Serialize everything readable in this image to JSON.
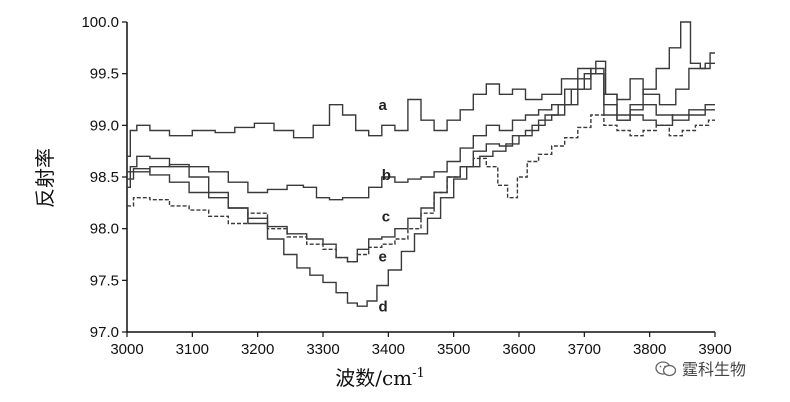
{
  "chart_data": {
    "type": "line",
    "title": "",
    "xlabel": "波数/cm",
    "xlabel_sup": "-1",
    "ylabel": "反射率",
    "xlim": [
      3000,
      3900
    ],
    "ylim": [
      97.0,
      100.0
    ],
    "xticks": [
      3000,
      3100,
      3200,
      3300,
      3400,
      3500,
      3600,
      3700,
      3800,
      3900
    ],
    "yticks": [
      "97.0",
      "97.5",
      "98.0",
      "98.5",
      "99.0",
      "99.5",
      "100.0"
    ],
    "grid": false,
    "legend": "none",
    "series": [
      {
        "name": "a",
        "label_at": [
          3385,
          99.15
        ],
        "points": [
          [
            3000,
            98.7
          ],
          [
            3010,
            98.95
          ],
          [
            3020,
            99.0
          ],
          [
            3050,
            98.95
          ],
          [
            3080,
            98.9
          ],
          [
            3120,
            98.95
          ],
          [
            3150,
            98.93
          ],
          [
            3180,
            98.98
          ],
          [
            3210,
            99.02
          ],
          [
            3240,
            98.95
          ],
          [
            3270,
            98.88
          ],
          [
            3300,
            99.0
          ],
          [
            3320,
            99.2
          ],
          [
            3340,
            99.1
          ],
          [
            3360,
            98.95
          ],
          [
            3380,
            98.9
          ],
          [
            3400,
            99.0
          ],
          [
            3420,
            98.95
          ],
          [
            3440,
            99.25
          ],
          [
            3460,
            99.05
          ],
          [
            3480,
            98.95
          ],
          [
            3500,
            99.05
          ],
          [
            3520,
            99.15
          ],
          [
            3540,
            99.3
          ],
          [
            3560,
            99.4
          ],
          [
            3580,
            99.3
          ],
          [
            3600,
            99.35
          ],
          [
            3620,
            99.25
          ],
          [
            3650,
            99.3
          ],
          [
            3680,
            99.45
          ],
          [
            3700,
            99.55
          ],
          [
            3720,
            99.5
          ],
          [
            3740,
            99.3
          ],
          [
            3760,
            99.25
          ],
          [
            3780,
            99.45
          ],
          [
            3800,
            99.3
          ],
          [
            3830,
            99.2
          ],
          [
            3850,
            99.35
          ],
          [
            3870,
            99.55
          ],
          [
            3900,
            99.6
          ]
        ]
      },
      {
        "name": "b",
        "label_at": [
          3390,
          98.47
        ],
        "points": [
          [
            3000,
            98.48
          ],
          [
            3020,
            98.55
          ],
          [
            3050,
            98.6
          ],
          [
            3080,
            98.62
          ],
          [
            3110,
            98.6
          ],
          [
            3140,
            98.55
          ],
          [
            3170,
            98.45
          ],
          [
            3200,
            98.35
          ],
          [
            3230,
            98.38
          ],
          [
            3260,
            98.42
          ],
          [
            3280,
            98.4
          ],
          [
            3300,
            98.3
          ],
          [
            3320,
            98.28
          ],
          [
            3340,
            98.3
          ],
          [
            3360,
            98.3
          ],
          [
            3380,
            98.4
          ],
          [
            3400,
            98.5
          ],
          [
            3420,
            98.45
          ],
          [
            3440,
            98.48
          ],
          [
            3460,
            98.5
          ],
          [
            3480,
            98.55
          ],
          [
            3500,
            98.65
          ],
          [
            3520,
            98.78
          ],
          [
            3540,
            98.9
          ],
          [
            3560,
            99.0
          ],
          [
            3580,
            98.95
          ],
          [
            3600,
            99.05
          ],
          [
            3620,
            99.1
          ],
          [
            3640,
            99.15
          ],
          [
            3660,
            99.2
          ],
          [
            3680,
            99.35
          ],
          [
            3700,
            99.45
          ],
          [
            3720,
            99.55
          ],
          [
            3740,
            99.1
          ],
          [
            3760,
            99.05
          ],
          [
            3780,
            99.15
          ],
          [
            3800,
            99.2
          ],
          [
            3820,
            99.1
          ],
          [
            3850,
            99.05
          ],
          [
            3870,
            99.1
          ],
          [
            3900,
            99.15
          ]
        ]
      },
      {
        "name": "c",
        "label_at": [
          3390,
          98.07
        ],
        "points": [
          [
            3000,
            98.55
          ],
          [
            3020,
            98.58
          ],
          [
            3050,
            98.52
          ],
          [
            3080,
            98.45
          ],
          [
            3110,
            98.35
          ],
          [
            3140,
            98.3
          ],
          [
            3170,
            98.2
          ],
          [
            3200,
            98.1
          ],
          [
            3230,
            98.02
          ],
          [
            3260,
            97.95
          ],
          [
            3290,
            97.9
          ],
          [
            3310,
            97.85
          ],
          [
            3330,
            97.72
          ],
          [
            3345,
            97.68
          ],
          [
            3360,
            97.8
          ],
          [
            3380,
            97.9
          ],
          [
            3400,
            97.92
          ],
          [
            3420,
            98.0
          ],
          [
            3440,
            98.1
          ],
          [
            3460,
            98.2
          ],
          [
            3480,
            98.35
          ],
          [
            3500,
            98.5
          ],
          [
            3520,
            98.6
          ],
          [
            3540,
            98.75
          ],
          [
            3560,
            98.82
          ],
          [
            3580,
            98.8
          ],
          [
            3600,
            98.9
          ],
          [
            3620,
            98.95
          ],
          [
            3640,
            99.05
          ],
          [
            3660,
            99.1
          ],
          [
            3680,
            99.2
          ],
          [
            3700,
            99.35
          ],
          [
            3720,
            99.5
          ],
          [
            3740,
            99.2
          ],
          [
            3760,
            99.05
          ],
          [
            3780,
            99.1
          ],
          [
            3800,
            99.05
          ],
          [
            3820,
            99.0
          ],
          [
            3850,
            99.1
          ],
          [
            3870,
            99.15
          ],
          [
            3900,
            99.2
          ]
        ]
      },
      {
        "name": "d",
        "label_at": [
          3385,
          97.2
        ],
        "points": [
          [
            3000,
            98.4
          ],
          [
            3010,
            98.6
          ],
          [
            3020,
            98.7
          ],
          [
            3050,
            98.68
          ],
          [
            3080,
            98.6
          ],
          [
            3110,
            98.5
          ],
          [
            3140,
            98.35
          ],
          [
            3170,
            98.2
          ],
          [
            3200,
            98.05
          ],
          [
            3230,
            97.9
          ],
          [
            3250,
            97.75
          ],
          [
            3270,
            97.62
          ],
          [
            3290,
            97.55
          ],
          [
            3310,
            97.48
          ],
          [
            3330,
            97.38
          ],
          [
            3345,
            97.28
          ],
          [
            3360,
            97.25
          ],
          [
            3375,
            97.3
          ],
          [
            3390,
            97.45
          ],
          [
            3410,
            97.6
          ],
          [
            3430,
            97.78
          ],
          [
            3450,
            97.95
          ],
          [
            3470,
            98.1
          ],
          [
            3490,
            98.3
          ],
          [
            3510,
            98.48
          ],
          [
            3530,
            98.6
          ],
          [
            3550,
            98.7
          ],
          [
            3570,
            98.75
          ],
          [
            3590,
            98.82
          ],
          [
            3610,
            98.9
          ],
          [
            3630,
            99.0
          ],
          [
            3650,
            99.1
          ],
          [
            3670,
            99.2
          ],
          [
            3690,
            99.35
          ],
          [
            3710,
            99.5
          ],
          [
            3725,
            99.62
          ],
          [
            3740,
            99.3
          ],
          [
            3760,
            99.1
          ],
          [
            3780,
            99.2
          ],
          [
            3800,
            99.35
          ],
          [
            3820,
            99.55
          ],
          [
            3840,
            99.75
          ],
          [
            3855,
            100.0
          ],
          [
            3870,
            99.6
          ],
          [
            3885,
            99.55
          ],
          [
            3900,
            99.7
          ]
        ]
      },
      {
        "name": "e",
        "label_at": [
          3385,
          97.68
        ],
        "points": [
          [
            3000,
            98.22
          ],
          [
            3020,
            98.3
          ],
          [
            3050,
            98.28
          ],
          [
            3080,
            98.22
          ],
          [
            3110,
            98.18
          ],
          [
            3140,
            98.12
          ],
          [
            3170,
            98.05
          ],
          [
            3200,
            98.15
          ],
          [
            3230,
            98.0
          ],
          [
            3260,
            97.92
          ],
          [
            3290,
            97.85
          ],
          [
            3310,
            97.8
          ],
          [
            3330,
            97.72
          ],
          [
            3345,
            97.68
          ],
          [
            3360,
            97.75
          ],
          [
            3380,
            97.82
          ],
          [
            3400,
            97.85
          ],
          [
            3420,
            97.9
          ],
          [
            3440,
            98.0
          ],
          [
            3460,
            98.15
          ],
          [
            3480,
            98.35
          ],
          [
            3500,
            98.5
          ],
          [
            3520,
            98.6
          ],
          [
            3540,
            98.68
          ],
          [
            3560,
            98.6
          ],
          [
            3575,
            98.42
          ],
          [
            3590,
            98.3
          ],
          [
            3605,
            98.5
          ],
          [
            3620,
            98.65
          ],
          [
            3640,
            98.72
          ],
          [
            3660,
            98.8
          ],
          [
            3680,
            98.88
          ],
          [
            3700,
            98.98
          ],
          [
            3720,
            99.1
          ],
          [
            3740,
            99.0
          ],
          [
            3760,
            98.95
          ],
          [
            3780,
            98.9
          ],
          [
            3800,
            98.95
          ],
          [
            3820,
            99.0
          ],
          [
            3840,
            98.9
          ],
          [
            3860,
            98.95
          ],
          [
            3880,
            99.0
          ],
          [
            3900,
            99.05
          ]
        ]
      }
    ]
  },
  "watermark": {
    "text": "霆科生物",
    "icon": "wechat-icon"
  },
  "colors": {
    "line": "#3a3a3a",
    "axis": "#111111"
  }
}
